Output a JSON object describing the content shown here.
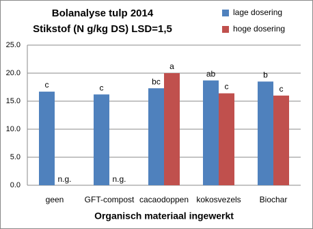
{
  "chart_data": {
    "type": "bar",
    "title": "Bolanalyse tulp 2014",
    "subtitle": "Stikstof (N g/kg DS) LSD=1,5",
    "x_label": "Organisch materiaal ingewerkt",
    "categories": [
      "geen",
      "GFT-compost",
      "cacaodoppen",
      "kokosvezels",
      "Biochar"
    ],
    "series": [
      {
        "name": "lage dosering",
        "color": "#4f81bd",
        "values": [
          16.7,
          16.2,
          17.3,
          18.7,
          18.5
        ],
        "labels": [
          "c",
          "c",
          "bc",
          "ab",
          "b"
        ]
      },
      {
        "name": "hoge dosering",
        "color": "#c0504d",
        "values": [
          null,
          null,
          20.0,
          16.4,
          16.0
        ],
        "labels": [
          "n.g.",
          "n.g.",
          "a",
          "c",
          "c"
        ]
      }
    ],
    "ylim": [
      0,
      25
    ],
    "yticks": [
      {
        "value": 0,
        "label": "0.0"
      },
      {
        "value": 5,
        "label": "5.0"
      },
      {
        "value": 10,
        "label": "10.0"
      },
      {
        "value": 15,
        "label": "15.0"
      },
      {
        "value": 20,
        "label": "20.0"
      },
      {
        "value": 25,
        "label": "25.0"
      }
    ],
    "grid": true,
    "legend": "top-right"
  }
}
